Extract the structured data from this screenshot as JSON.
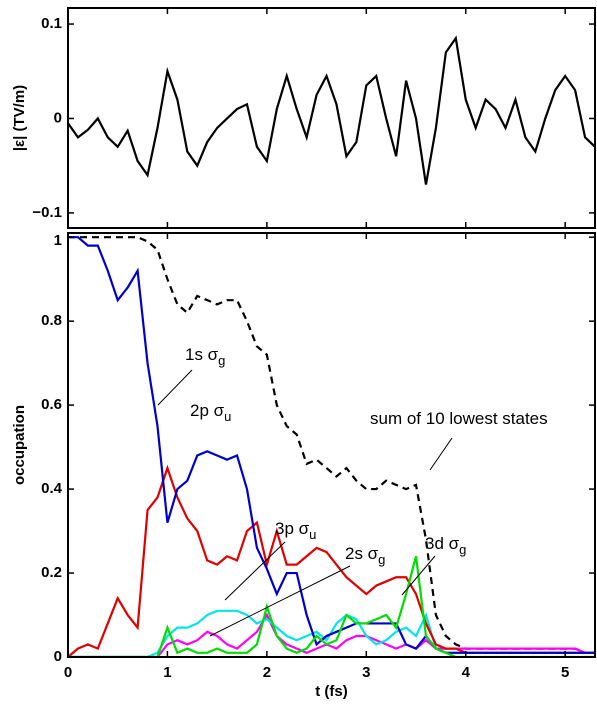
{
  "chart_data": [
    {
      "type": "line",
      "ylabel": "|ε|  (TV/m)",
      "x": [
        0,
        0.1,
        0.2,
        0.3,
        0.4,
        0.5,
        0.6,
        0.7,
        0.8,
        0.9,
        1,
        1.1,
        1.2,
        1.3,
        1.4,
        1.5,
        1.6,
        1.7,
        1.8,
        1.9,
        2,
        2.1,
        2.2,
        2.3,
        2.4,
        2.5,
        2.6,
        2.7,
        2.8,
        2.9,
        3,
        3.1,
        3.2,
        3.3,
        3.4,
        3.5,
        3.6,
        3.7,
        3.8,
        3.9,
        4,
        4.1,
        4.2,
        4.3,
        4.4,
        4.5,
        4.6,
        4.7,
        4.8,
        4.9,
        5,
        5.1,
        5.2,
        5.3
      ],
      "series": [
        {
          "color": "#000000",
          "linestyle": "solid",
          "values": [
            -0.005,
            -0.02,
            -0.012,
            0,
            -0.02,
            -0.03,
            -0.013,
            -0.045,
            -0.06,
            -0.01,
            0.05,
            0.02,
            -0.035,
            -0.05,
            -0.025,
            -0.01,
            0,
            0.01,
            0.015,
            -0.03,
            -0.045,
            0.01,
            0.045,
            0.01,
            -0.02,
            0.025,
            0.045,
            0.015,
            -0.04,
            -0.025,
            0.035,
            0.045,
            0,
            -0.04,
            0.04,
            0,
            -0.07,
            -0.01,
            0.07,
            0.085,
            0.02,
            -0.01,
            0.02,
            0.01,
            -0.01,
            0.02,
            -0.02,
            -0.035,
            0,
            0.03,
            0.045,
            0.03,
            -0.02,
            -0.03
          ]
        }
      ],
      "xlim": [
        0,
        5.3
      ],
      "xticks": [
        0,
        1,
        2,
        3,
        4,
        5
      ],
      "xticklabels": false,
      "ylim": [
        -0.116,
        0.117
      ],
      "yticks": [
        {
          "value": -0.1,
          "label": "−0.1"
        },
        0,
        0.1
      ]
    },
    {
      "type": "line",
      "xlabel": "t (fs)",
      "ylabel": "occupation",
      "x": [
        0,
        0.1,
        0.2,
        0.3,
        0.4,
        0.5,
        0.6,
        0.7,
        0.8,
        0.9,
        1,
        1.1,
        1.2,
        1.3,
        1.4,
        1.5,
        1.6,
        1.7,
        1.8,
        1.9,
        2,
        2.1,
        2.2,
        2.3,
        2.4,
        2.5,
        2.6,
        2.7,
        2.8,
        2.9,
        3,
        3.1,
        3.2,
        3.3,
        3.4,
        3.5,
        3.6,
        3.7,
        3.8,
        3.9,
        4,
        4.1,
        4.2,
        4.3,
        4.4,
        4.5,
        4.6,
        4.7,
        4.8,
        4.9,
        5,
        5.1,
        5.2,
        5.3
      ],
      "series": [
        {
          "color": "#000000",
          "linestyle": "dashed",
          "values": [
            1,
            1,
            1,
            1,
            1,
            1,
            1,
            1,
            0.99,
            0.97,
            0.9,
            0.84,
            0.82,
            0.86,
            0.85,
            0.84,
            0.85,
            0.85,
            0.8,
            0.74,
            0.72,
            0.6,
            0.55,
            0.53,
            0.46,
            0.47,
            0.45,
            0.43,
            0.45,
            0.42,
            0.4,
            0.4,
            0.42,
            0.41,
            0.4,
            0.41,
            0.28,
            0.1,
            0.05,
            0.03,
            0.02,
            0.02,
            0.02,
            0.02,
            0.02,
            0.02,
            0.02,
            0.02,
            0.02,
            0.02,
            0.02,
            0.02,
            0.01,
            0.01
          ]
        },
        {
          "color": "#ff00ff",
          "linestyle": "solid",
          "values": [
            0,
            0,
            0,
            0,
            0,
            0,
            0,
            0,
            0,
            0,
            0.03,
            0.04,
            0.03,
            0.04,
            0.06,
            0.05,
            0.03,
            0.02,
            0.04,
            0.06,
            0.1,
            0.05,
            0.03,
            0.02,
            0.01,
            0.02,
            0.03,
            0.02,
            0.04,
            0.05,
            0.05,
            0.04,
            0.03,
            0.02,
            0.03,
            0.02,
            0.04,
            0.02,
            0.02,
            0.02,
            0.02,
            0.02,
            0.02,
            0.02,
            0.02,
            0.02,
            0.02,
            0.02,
            0.02,
            0.02,
            0.02,
            0.02,
            0.01,
            0.01
          ]
        },
        {
          "color": "#00e5e5",
          "linestyle": "solid",
          "values": [
            0,
            0,
            0,
            0,
            0,
            0,
            0,
            0,
            0,
            0.01,
            0.05,
            0.07,
            0.07,
            0.08,
            0.1,
            0.11,
            0.11,
            0.11,
            0.1,
            0.08,
            0.09,
            0.07,
            0.05,
            0.04,
            0.05,
            0.06,
            0.04,
            0.08,
            0.1,
            0.09,
            0.05,
            0.03,
            0.04,
            0.06,
            0.07,
            0.05,
            0.1,
            0.02,
            0.01,
            0.01,
            0.01,
            0.01,
            0.01,
            0.01,
            0.01,
            0.01,
            0.01,
            0.01,
            0.01,
            0.01,
            0.01,
            0.01,
            0.01,
            0.01
          ]
        },
        {
          "color": "#e00000",
          "linestyle": "solid",
          "values": [
            0,
            0.02,
            0.03,
            0.02,
            0.08,
            0.14,
            0.1,
            0.07,
            0.35,
            0.38,
            0.45,
            0.38,
            0.33,
            0.3,
            0.23,
            0.22,
            0.24,
            0.23,
            0.3,
            0.32,
            0.22,
            0.3,
            0.22,
            0.22,
            0.24,
            0.26,
            0.25,
            0.22,
            0.19,
            0.17,
            0.15,
            0.17,
            0.18,
            0.19,
            0.19,
            0.15,
            0.08,
            0.03,
            0.02,
            0.02,
            0.01,
            0.01,
            0.01,
            0.01,
            0.01,
            0.01,
            0.01,
            0.01,
            0.01,
            0.01,
            0.01,
            0.01,
            0.01,
            0.01
          ]
        },
        {
          "color": "#0000cc",
          "linestyle": "solid",
          "values": [
            1,
            1,
            0.98,
            0.98,
            0.92,
            0.85,
            0.88,
            0.92,
            0.7,
            0.55,
            0.32,
            0.4,
            0.42,
            0.48,
            0.49,
            0.48,
            0.47,
            0.48,
            0.4,
            0.26,
            0.21,
            0.15,
            0.2,
            0.2,
            0.1,
            0.03,
            0.05,
            0.06,
            0.07,
            0.08,
            0.08,
            0.08,
            0.08,
            0.08,
            0.03,
            0.02,
            0.05,
            0.02,
            0.01,
            0.01,
            0.01,
            0.01,
            0.01,
            0.01,
            0.01,
            0.01,
            0.01,
            0.01,
            0.01,
            0.01,
            0.01,
            0.01,
            0.01,
            0.01
          ]
        },
        {
          "color": "#00dd00",
          "linestyle": "solid",
          "values": [
            0,
            0,
            0,
            0,
            0,
            0,
            0,
            0,
            0,
            0,
            0.07,
            0.01,
            0.02,
            0.01,
            0.01,
            0.02,
            0.01,
            0.01,
            0.01,
            0.03,
            0.12,
            0.05,
            0.02,
            0.01,
            0.02,
            0.05,
            0.03,
            0.04,
            0.1,
            0.08,
            0.08,
            0.09,
            0.1,
            0.07,
            0.15,
            0.24,
            0.05,
            0.02,
            0.01,
            0,
            0,
            0,
            0,
            0,
            0,
            0,
            0,
            0,
            0,
            0,
            0,
            0,
            0,
            0
          ]
        }
      ],
      "annotations": [
        {
          "text": "1s σ",
          "sub": "g"
        },
        {
          "text": "2p σ",
          "sub": "u"
        },
        {
          "text": "3p σ",
          "sub": "u"
        },
        {
          "text": "2s σ",
          "sub": "g"
        },
        {
          "text": "3d σ",
          "sub": "g"
        },
        {
          "text": "sum of 10 lowest states"
        }
      ],
      "xlim": [
        0,
        5.3
      ],
      "xticks": [
        0,
        1,
        2,
        3,
        4,
        5
      ],
      "xticklabels": true,
      "ylim": [
        0,
        1.01
      ],
      "yticks": [
        0,
        0.2,
        0.4,
        0.6,
        0.8,
        1
      ]
    }
  ]
}
